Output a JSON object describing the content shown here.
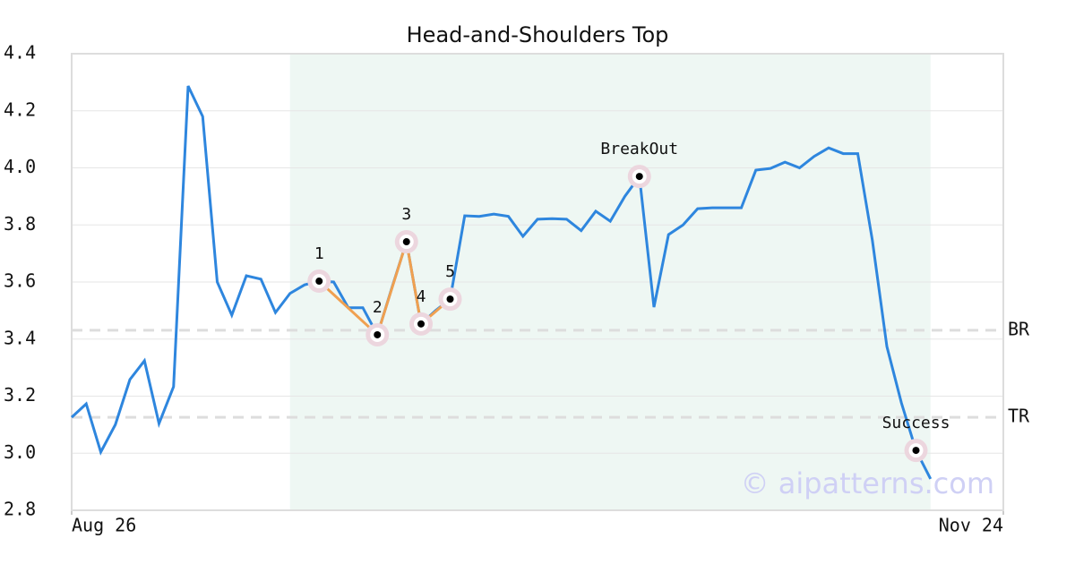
{
  "chart_data": {
    "type": "line",
    "title": "Head-and-Shoulders Top",
    "x": [
      0,
      1,
      2,
      3,
      4,
      5,
      6,
      7,
      8,
      9,
      10,
      11,
      12,
      13,
      14,
      15,
      16,
      17,
      18,
      19,
      20,
      21,
      22,
      23,
      24,
      25,
      26,
      27,
      28,
      29,
      30,
      31,
      32,
      33,
      34,
      35,
      36,
      37,
      38,
      39,
      40,
      41,
      42,
      43,
      44,
      45,
      46,
      47,
      48,
      49,
      50,
      51,
      52,
      53,
      54,
      55,
      56,
      57,
      58,
      59
    ],
    "values": [
      3.126,
      3.173,
      3.004,
      3.1,
      3.258,
      3.324,
      3.104,
      3.233,
      4.287,
      4.18,
      3.6,
      3.484,
      3.622,
      3.61,
      3.493,
      3.56,
      3.59,
      3.603,
      3.6,
      3.51,
      3.51,
      3.415,
      3.58,
      3.741,
      3.453,
      3.5,
      3.54,
      3.832,
      3.83,
      3.838,
      3.83,
      3.76,
      3.82,
      3.822,
      3.82,
      3.78,
      3.848,
      3.813,
      3.9,
      3.97,
      3.512,
      3.766,
      3.8,
      3.857,
      3.86,
      3.86,
      3.86,
      3.992,
      3.998,
      4.02,
      4.0,
      4.04,
      4.07,
      4.05,
      4.05,
      3.747,
      3.374,
      3.176,
      3.01,
      2.91
    ],
    "color": "#2e86de",
    "xlim": [
      0,
      64
    ],
    "xticks": [
      {
        "value": 0,
        "label": "Aug 26"
      },
      {
        "value": 64,
        "label": "Nov 24"
      }
    ],
    "ylim": [
      2.8,
      4.4
    ],
    "yticks": [
      2.8,
      {
        "value": 3,
        "label": "3.0"
      },
      3.2,
      3.4,
      3.6,
      3.8,
      {
        "value": 4,
        "label": "4.0"
      },
      4.2,
      4.4
    ],
    "grid": true,
    "highlight_range": [
      15,
      59
    ],
    "pattern_color": "#f0a050",
    "pattern_points": [
      {
        "label": "1",
        "x": 17,
        "value": 3.603
      },
      {
        "label": "2",
        "x": 21,
        "value": 3.415
      },
      {
        "label": "3",
        "x": 23,
        "value": 3.741
      },
      {
        "label": "4",
        "x": 24,
        "value": 3.453
      },
      {
        "label": "5",
        "x": 26,
        "value": 3.54
      }
    ],
    "events": [
      {
        "label": "BreakOut",
        "x": 39,
        "value": 3.97
      },
      {
        "label": "Success",
        "x": 58,
        "value": 3.01
      }
    ],
    "levels": [
      {
        "label": "BR",
        "value": 3.431
      },
      {
        "label": "TR",
        "value": 3.126
      }
    ],
    "watermark": "© aipatterns.com"
  }
}
